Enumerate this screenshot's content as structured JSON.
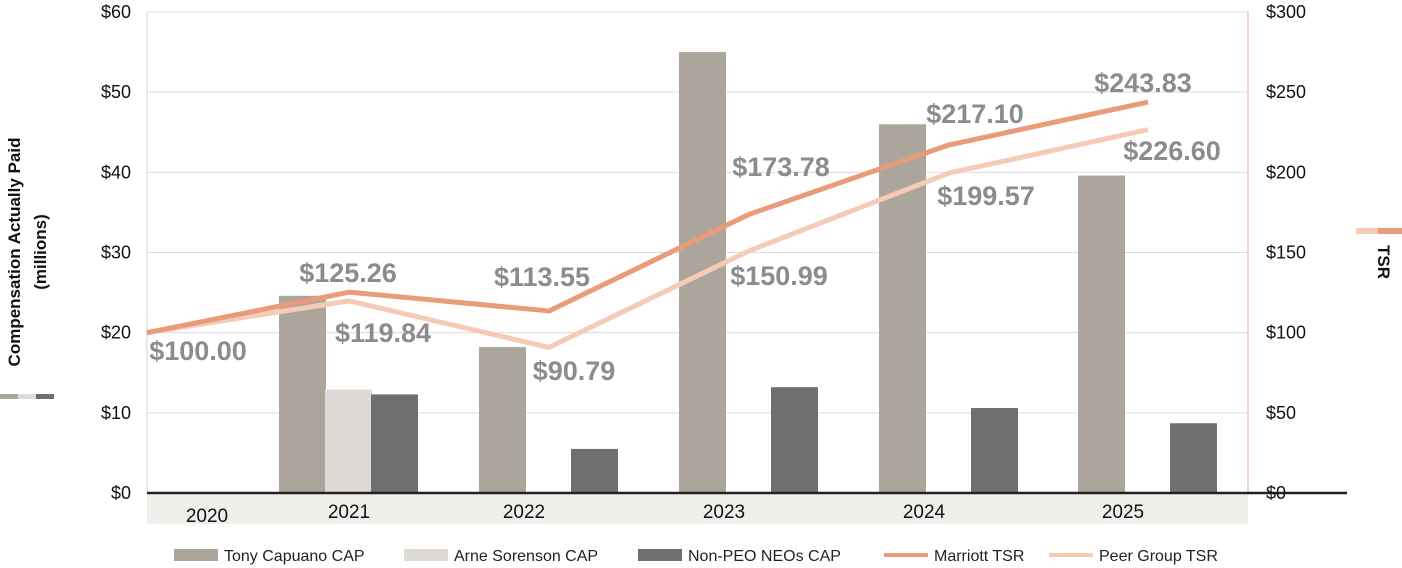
{
  "chart_data": {
    "type": "bar",
    "categories": [
      "2020",
      "2021",
      "2022",
      "2023",
      "2024",
      "2025"
    ],
    "left_axis": {
      "title_line1": "Compensation Actually Paid",
      "title_line2": "(millions)",
      "ylim": [
        0,
        60
      ],
      "ticks": [
        {
          "value": 0,
          "label": "$0"
        },
        {
          "value": 10,
          "label": "$10"
        },
        {
          "value": 20,
          "label": "$20"
        },
        {
          "value": 30,
          "label": "$30"
        },
        {
          "value": 40,
          "label": "$40"
        },
        {
          "value": 50,
          "label": "$50"
        },
        {
          "value": 60,
          "label": "$60"
        }
      ]
    },
    "right_axis": {
      "title": "TSR",
      "ylim": [
        0,
        300
      ],
      "ticks": [
        {
          "value": 0,
          "label": "$0"
        },
        {
          "value": 50,
          "label": "$50"
        },
        {
          "value": 100,
          "label": "$100"
        },
        {
          "value": 150,
          "label": "$150"
        },
        {
          "value": 200,
          "label": "$200"
        },
        {
          "value": 250,
          "label": "$250"
        },
        {
          "value": 300,
          "label": "$300"
        }
      ]
    },
    "bar_series": [
      {
        "name": "Tony Capuano CAP",
        "color": "#aca59b",
        "values": [
          null,
          24.6,
          18.2,
          55.0,
          46.0,
          39.6
        ]
      },
      {
        "name": "Arne Sorenson CAP",
        "color": "#dedbd6",
        "values": [
          null,
          12.9,
          null,
          null,
          null,
          null
        ]
      },
      {
        "name": "Non-PEO NEOs CAP",
        "color": "#6f6f6f",
        "values": [
          null,
          12.3,
          5.5,
          13.2,
          10.6,
          8.7
        ]
      }
    ],
    "line_series": [
      {
        "name": "Marriott TSR",
        "color": "#e99b7a",
        "values": [
          100.0,
          125.26,
          113.55,
          173.78,
          217.1,
          243.83
        ],
        "labels": [
          "$100.00",
          "$125.26",
          "$113.55",
          "$173.78",
          "$217.10",
          "$243.83"
        ]
      },
      {
        "name": "Peer Group TSR",
        "color": "#f4cbb7",
        "values": [
          100.0,
          119.84,
          90.79,
          150.99,
          199.57,
          226.6
        ],
        "labels": [
          "",
          "$119.84",
          "$90.79",
          "$150.99",
          "$199.57",
          "$226.60"
        ]
      }
    ]
  }
}
